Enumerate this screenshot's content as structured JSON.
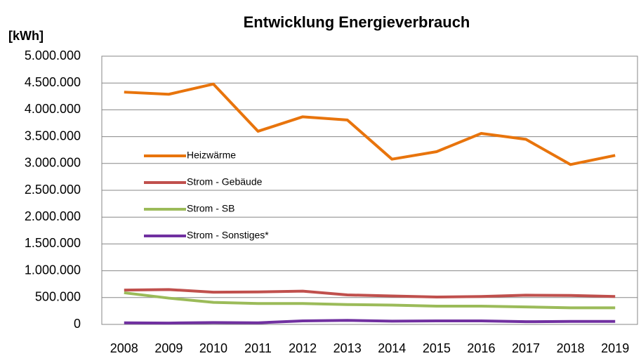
{
  "chart_data": {
    "type": "line",
    "title": "Entwicklung Energieverbrauch",
    "y_label": "[kWh]",
    "categories": [
      "2008",
      "2009",
      "2010",
      "2011",
      "2012",
      "2013",
      "2014",
      "2015",
      "2016",
      "2017",
      "2018",
      "2019"
    ],
    "series": [
      {
        "name": "Heizwärme",
        "color": "#e8740c",
        "values": [
          4330000,
          4290000,
          4480000,
          3600000,
          3870000,
          3810000,
          3080000,
          3220000,
          3560000,
          3450000,
          2980000,
          3150000
        ]
      },
      {
        "name": "Strom - Gebäude",
        "color": "#c0504d",
        "values": [
          640000,
          650000,
          600000,
          605000,
          620000,
          550000,
          530000,
          510000,
          520000,
          545000,
          540000,
          520000
        ]
      },
      {
        "name": "Strom - SB",
        "color": "#9bbb59",
        "values": [
          590000,
          490000,
          410000,
          390000,
          390000,
          370000,
          360000,
          340000,
          340000,
          325000,
          310000,
          310000
        ]
      },
      {
        "name": "Strom - Sonstiges*",
        "color": "#7030a0",
        "values": [
          30000,
          25000,
          35000,
          30000,
          65000,
          75000,
          60000,
          65000,
          65000,
          50000,
          55000,
          55000
        ]
      }
    ],
    "ylim": [
      0,
      5000000
    ],
    "yticks": [
      0,
      {
        "value": 500000,
        "label": "500.000"
      },
      {
        "value": 1000000,
        "label": "1.000.000"
      },
      {
        "value": 1500000,
        "label": "1.500.000"
      },
      {
        "value": 2000000,
        "label": "2.000.000"
      },
      {
        "value": 2500000,
        "label": "2.500.000"
      },
      {
        "value": 3000000,
        "label": "3.000.000"
      },
      {
        "value": 3500000,
        "label": "3.500.000"
      },
      {
        "value": 4000000,
        "label": "4.000.000"
      },
      {
        "value": 4500000,
        "label": "4.500.000"
      },
      {
        "value": 5000000,
        "label": "5.000.000"
      }
    ],
    "grid": true
  }
}
